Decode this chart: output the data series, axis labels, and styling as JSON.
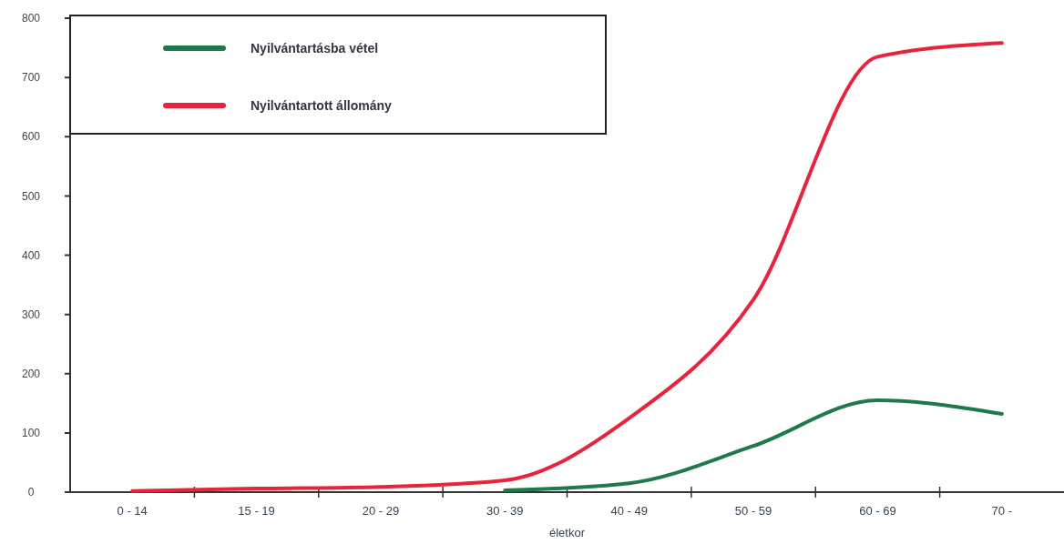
{
  "chart_data": {
    "type": "line",
    "xlabel": "életkor",
    "categories": [
      "0 - 14",
      "15 - 19",
      "20 - 29",
      "30 - 39",
      "40 - 49",
      "50 - 59",
      "60 - 69",
      "70 -"
    ],
    "ylim": [
      0,
      800
    ],
    "yticks": [
      0,
      100,
      200,
      300,
      400,
      500,
      600,
      700,
      800
    ],
    "legend": "top left",
    "marker": "none",
    "series": [
      {
        "name": "Nyilvántartásba vétel",
        "color": "#1e7a4a",
        "values": [
          null,
          null,
          null,
          3,
          15,
          78,
          155,
          132
        ]
      },
      {
        "name": "Nyilvántartott állomány",
        "color": "#e8243c",
        "values": [
          2,
          6,
          9,
          20,
          125,
          325,
          735,
          758
        ]
      }
    ]
  }
}
